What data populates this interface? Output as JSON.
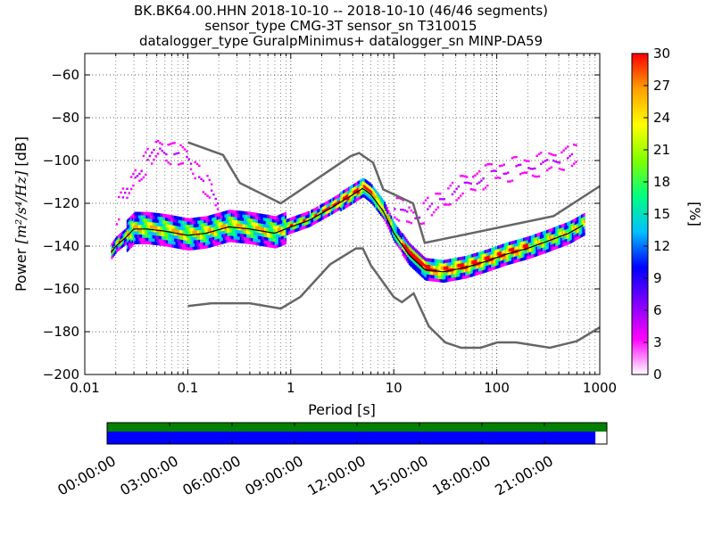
{
  "title_lines": [
    "BK.BK64.00.HHN   2018-10-10 -- 2018-10-10  (46/46 segments)",
    "sensor_type CMG-3T sensor_sn T310015",
    "datalogger_type GuralpMinimus+ datalogger_sn MINP-DA59"
  ],
  "chart_data": {
    "type": "heatmap",
    "xlabel": "Period [s]",
    "ylabel": "Power [m²/s⁴/Hz] [dB]",
    "ylabel_parts": {
      "prefix": "Power ",
      "expr": "[m²/s⁴/Hz]",
      "suffix": " [dB]"
    },
    "xscale": "log",
    "xlim": [
      0.01,
      1000
    ],
    "ylim": [
      -200,
      -50
    ],
    "x_ticks": [
      0.01,
      0.1,
      1,
      10,
      100,
      1000
    ],
    "x_tick_labels": [
      "0.01",
      "0.1",
      "1",
      "10",
      "100",
      "1000"
    ],
    "y_ticks": [
      -200,
      -180,
      -160,
      -140,
      -120,
      -100,
      -80,
      -60
    ],
    "y_tick_labels": [
      "−200",
      "−180",
      "−160",
      "−140",
      "−120",
      "−100",
      "−80",
      "−60"
    ],
    "grid": true,
    "colorbar": {
      "label": "[%]",
      "range": [
        0,
        30
      ],
      "ticks": [
        0,
        3,
        6,
        9,
        12,
        15,
        18,
        21,
        24,
        27,
        30
      ],
      "tick_labels": [
        "0",
        "3",
        "6",
        "9",
        "12",
        "15",
        "18",
        "21",
        "24",
        "27",
        "30"
      ],
      "colors": [
        "#ffffff",
        "#ff00ff",
        "#8000ff",
        "#0000ff",
        "#00c0ff",
        "#00ff80",
        "#80ff00",
        "#ffff00",
        "#ffa000",
        "#ff0000"
      ]
    },
    "nhnm": {
      "name": "NHNM",
      "color": "#666666",
      "points": [
        [
          0.1,
          -91.5
        ],
        [
          0.22,
          -97.4
        ],
        [
          0.32,
          -110.5
        ],
        [
          0.8,
          -120
        ],
        [
          3.8,
          -98
        ],
        [
          4.6,
          -96.5
        ],
        [
          6.3,
          -101
        ],
        [
          7.9,
          -113.5
        ],
        [
          15.4,
          -120
        ],
        [
          20,
          -138.5
        ],
        [
          354.8,
          -126
        ],
        [
          1000,
          -112
        ]
      ]
    },
    "nlnm": {
      "name": "NLNM",
      "color": "#666666",
      "points": [
        [
          0.1,
          -168
        ],
        [
          0.17,
          -166.7
        ],
        [
          0.4,
          -166.7
        ],
        [
          0.8,
          -169.2
        ],
        [
          1.24,
          -163.7
        ],
        [
          2.4,
          -148.6
        ],
        [
          4.3,
          -141.1
        ],
        [
          5,
          -141.1
        ],
        [
          6,
          -149
        ],
        [
          10,
          -163.8
        ],
        [
          12,
          -166.2
        ],
        [
          15.6,
          -162.1
        ],
        [
          21.9,
          -177.5
        ],
        [
          31.6,
          -185
        ],
        [
          45,
          -187.5
        ],
        [
          70,
          -187.5
        ],
        [
          101,
          -185
        ],
        [
          154,
          -185
        ],
        [
          328,
          -187.5
        ],
        [
          600,
          -184.4
        ],
        [
          1000,
          -178
        ]
      ]
    },
    "psd_core": {
      "period": [
        0.018,
        0.02,
        0.025,
        0.03,
        0.04,
        0.06,
        0.1,
        0.15,
        0.25,
        0.4,
        0.7,
        1,
        1.5,
        2.5,
        4,
        5,
        6,
        8,
        10,
        14,
        20,
        30,
        50,
        80,
        120,
        200,
        300,
        500,
        700
      ],
      "power_db": [
        -143,
        -140,
        -136,
        -132,
        -132,
        -133,
        -135,
        -134,
        -131,
        -132,
        -134,
        -131,
        -128,
        -122,
        -116,
        -113,
        -116,
        -124,
        -134,
        -144,
        -151,
        -152,
        -150,
        -147,
        -144,
        -141,
        -138,
        -134,
        -130
      ]
    },
    "outliers": {
      "upper_branch": {
        "period": [
          0.02,
          0.03,
          0.05,
          0.1,
          0.2
        ],
        "power_db": [
          -125,
          -108,
          -95,
          -100,
          -122
        ]
      },
      "upper_right_branch": {
        "period": [
          10,
          15,
          20,
          40,
          100,
          300,
          600
        ],
        "power_db": [
          -122,
          -128,
          -124,
          -114,
          -106,
          -102,
          -98
        ]
      }
    }
  },
  "timeline": {
    "start_label": "00:00:00",
    "labels": [
      "00:00:00",
      "03:00:00",
      "06:00:00",
      "09:00:00",
      "12:00:00",
      "15:00:00",
      "18:00:00",
      "21:00:00"
    ],
    "top_bar_color": "#008000",
    "bottom_bar_color": "#0000ff",
    "coverage_top": 1.0,
    "coverage_bottom": 0.977
  }
}
